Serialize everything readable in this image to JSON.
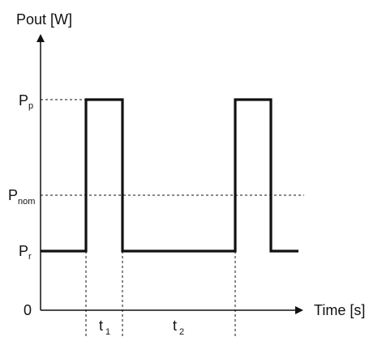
{
  "diagram": {
    "y_axis_label": "Pout [W]",
    "x_axis_label": "Time [s]",
    "origin_label": "0",
    "levels": [
      {
        "key": "peak",
        "symbol": "P",
        "subscript": "p"
      },
      {
        "key": "nominal",
        "symbol": "P",
        "subscript": "nom"
      },
      {
        "key": "rated",
        "symbol": "P",
        "subscript": "r"
      }
    ],
    "intervals": [
      {
        "key": "t1",
        "symbol": "t",
        "subscript": "1"
      },
      {
        "key": "t2",
        "symbol": "t",
        "subscript": "2"
      }
    ]
  },
  "colors": {
    "signal": "#111111",
    "axis": "#111111",
    "guide": "#111111",
    "background": "#ffffff"
  }
}
